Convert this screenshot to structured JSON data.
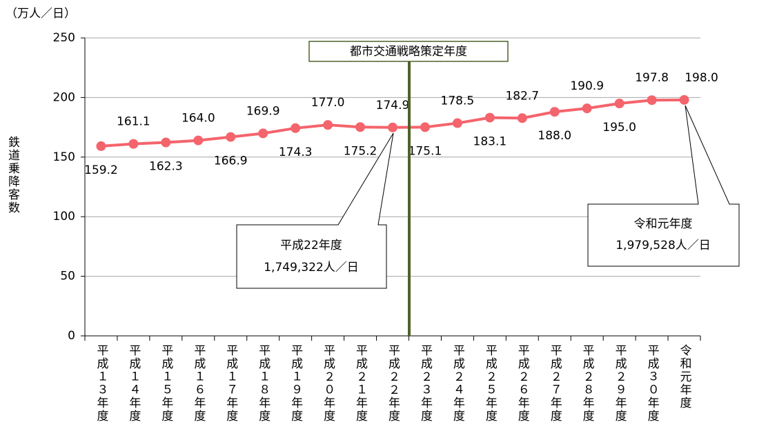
{
  "chart_data": {
    "type": "line",
    "unit_label": "（万人／日）",
    "y_label": "鉄道乗降客数",
    "categories": [
      "平成１３年度",
      "平成１４年度",
      "平成１５年度",
      "平成１６年度",
      "平成１７年度",
      "平成１８年度",
      "平成１９年度",
      "平成２０年度",
      "平成２１年度",
      "平成２２年度",
      "平成２３年度",
      "平成２４年度",
      "平成２５年度",
      "平成２６年度",
      "平成２７年度",
      "平成２８年度",
      "平成２９年度",
      "平成３０年度",
      "令和元年度"
    ],
    "series": [
      {
        "name": "鉄道乗降客数",
        "color": "#f4646c",
        "values": [
          159.2,
          161.1,
          162.3,
          164.0,
          166.9,
          169.9,
          174.3,
          177.0,
          175.2,
          174.9,
          175.1,
          178.5,
          183.1,
          182.7,
          188.0,
          190.9,
          195.0,
          197.8,
          198.0
        ],
        "value_labels": [
          "159.2",
          "161.1",
          "162.3",
          "164.0",
          "166.9",
          "169.9",
          "174.3",
          "177.0",
          "175.2",
          "174.9",
          "175.1",
          "178.5",
          "183.1",
          "182.7",
          "188.0",
          "190.9",
          "195.0",
          "197.8",
          "198.0"
        ]
      }
    ],
    "ylim": [
      0,
      250
    ],
    "yticks": [
      0,
      50,
      100,
      150,
      200,
      250
    ],
    "grid": true,
    "annotations": [
      "都市交通戦略策定年度",
      "平成22年度",
      "1,749,322人／日",
      "令和元年度",
      "1,979,528人／日"
    ]
  }
}
